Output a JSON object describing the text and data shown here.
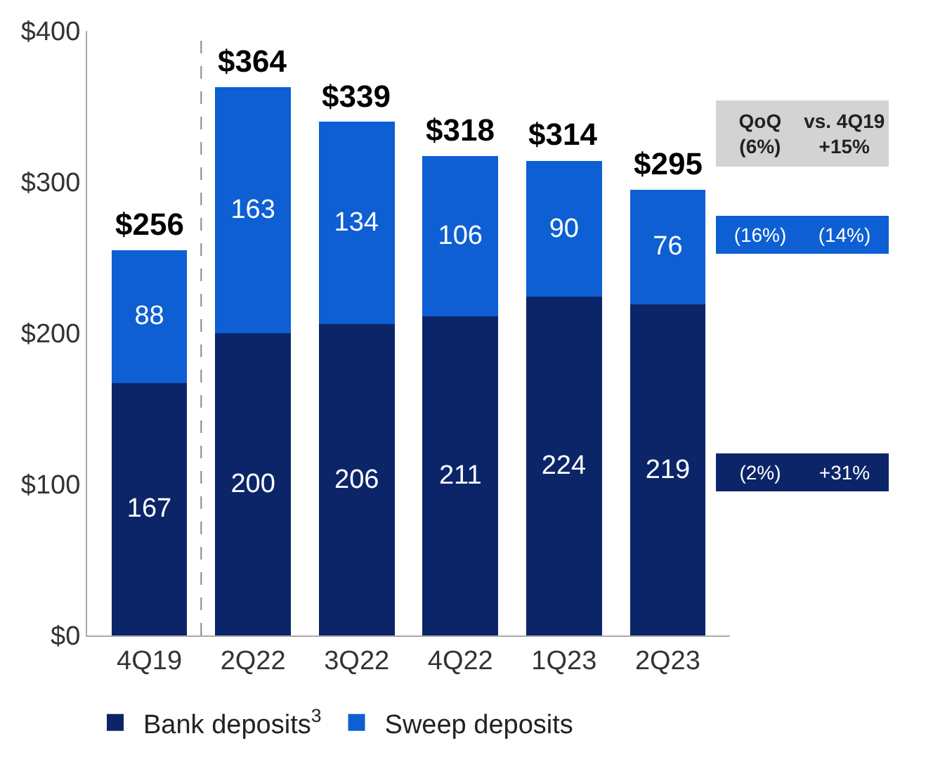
{
  "chart_data": {
    "type": "bar",
    "stacked": true,
    "categories": [
      "4Q19",
      "2Q22",
      "3Q22",
      "4Q22",
      "1Q23",
      "2Q23"
    ],
    "series": [
      {
        "name": "Bank deposits$^{3}$",
        "color": "#0b2568",
        "values": [
          167,
          200,
          206,
          211,
          224,
          219
        ]
      },
      {
        "name": "Sweep deposits",
        "color": "#0d5fd3",
        "values": [
          88,
          163,
          134,
          106,
          90,
          76
        ]
      }
    ],
    "data_labels": true,
    "totals": [
      "$256",
      "$364",
      "$339",
      "$318",
      "$314",
      "$295"
    ],
    "ylim": [
      0,
      400
    ],
    "yticks": [
      {
        "value": 0,
        "label": "$0"
      },
      {
        "value": 100,
        "label": "$100"
      },
      {
        "value": 200,
        "label": "$200"
      },
      {
        "value": 300,
        "label": "$300"
      },
      {
        "value": 400,
        "label": "$400"
      }
    ],
    "annotations": [
      "QoQ\n(6%)",
      "vs. 4Q19\n+15%",
      "(16%)",
      "(14%)",
      "(2%)",
      "+31%"
    ],
    "legend": "bottom"
  }
}
